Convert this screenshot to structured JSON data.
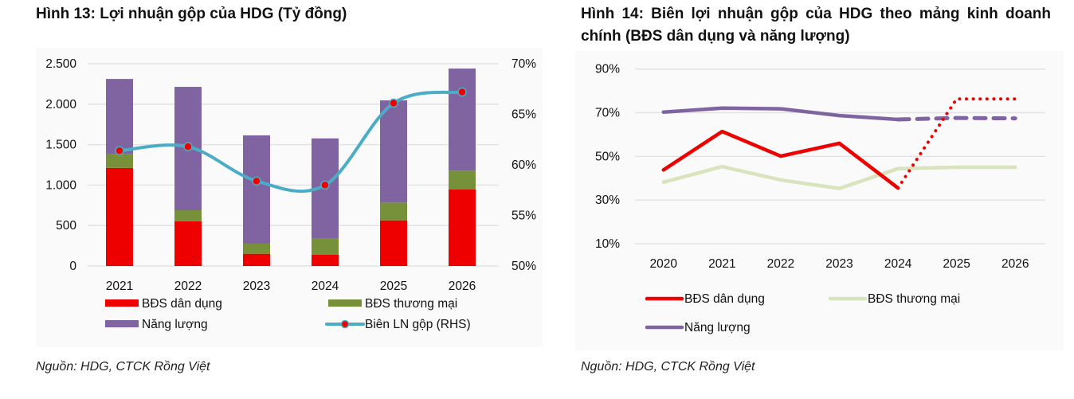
{
  "figure1": {
    "title": "Hình 13: Lợi nhuận gộp của HDG (Tỷ đồng)",
    "source": "Nguồn: HDG, CTCK Rồng Việt"
  },
  "figure2": {
    "title": "Hình 14: Biên lợi nhuận gộp của HDG theo mảng kinh doanh chính (BĐS dân dụng và năng lượng)",
    "source": "Nguồn: HDG, CTCK Rồng Việt"
  },
  "colors": {
    "red": "#ee0000",
    "green": "#77903a",
    "purple": "#8064a2",
    "cyan": "#4bacc6",
    "lightgreen": "#d7e4bd",
    "grid": "#e3e3e3"
  },
  "chart_data": [
    {
      "type": "bar",
      "stacked": true,
      "title": "Hình 13: Lợi nhuận gộp của HDG (Tỷ đồng)",
      "categories": [
        "2021",
        "2022",
        "2023",
        "2024",
        "2025",
        "2026"
      ],
      "series": [
        {
          "name": "BĐS dân dụng",
          "values": [
            1213,
            554,
            151,
            141,
            564,
            945
          ],
          "color": "#ee0000"
        },
        {
          "name": "BĐS thương mại",
          "values": [
            174,
            135,
            125,
            203,
            220,
            233
          ],
          "color": "#77903a"
        },
        {
          "name": "Năng lượng",
          "values": [
            925,
            1525,
            1338,
            1233,
            1263,
            1262
          ],
          "color": "#8064a2"
        }
      ],
      "secondary_series": {
        "name": "Biên LN gộp (RHS)",
        "type": "line",
        "smooth": true,
        "axis": "right",
        "values": [
          61.4,
          61.8,
          58.4,
          58.0,
          66.1,
          67.2
        ],
        "color": "#4bacc6",
        "marker_color": "#ee0000"
      },
      "ylim": [
        0,
        2500
      ],
      "yticks": [
        "0",
        "500",
        "1.000",
        "1.500",
        "2.000",
        "2.500"
      ],
      "ytick_values": [
        0,
        500,
        1000,
        1500,
        2000,
        2500
      ],
      "y2lim": [
        50,
        70
      ],
      "y2ticks": [
        "50%",
        "55%",
        "60%",
        "65%",
        "70%"
      ],
      "y2tick_values": [
        50,
        55,
        60,
        65,
        70
      ],
      "xlabel": "",
      "ylabel": "",
      "grid": true,
      "legend_position": "bottom",
      "legend": [
        "BĐS dân dụng",
        "BĐS thương mại",
        "Năng lượng",
        "Biên LN gộp (RHS)"
      ]
    },
    {
      "type": "line",
      "title": "Hình 14: Biên lợi nhuận gộp của HDG theo mảng kinh doanh chính (BĐS dân dụng và năng lượng)",
      "x": [
        "2020",
        "2021",
        "2022",
        "2023",
        "2024",
        "2025",
        "2026"
      ],
      "series": [
        {
          "name": "BĐS dân dụng",
          "values": [
            43.8,
            61.4,
            50.1,
            56.0,
            35.5,
            76.3,
            76.3
          ],
          "color": "#ee0000",
          "forecast_from_index": 4,
          "forecast_style": "dotted"
        },
        {
          "name": "BĐS thương mại",
          "values": [
            38.2,
            45.3,
            39.2,
            35.3,
            44.4,
            45.0,
            45.0
          ],
          "color": "#d7e4bd"
        },
        {
          "name": "Năng lượng",
          "values": [
            70.3,
            72.1,
            71.8,
            68.7,
            66.9,
            67.6,
            67.4
          ],
          "color": "#8064a2",
          "forecast_from_index": 4,
          "forecast_style": "dashed"
        }
      ],
      "ylim": [
        10,
        90
      ],
      "yticks": [
        "10%",
        "30%",
        "50%",
        "70%",
        "90%"
      ],
      "ytick_values": [
        10,
        30,
        50,
        70,
        90
      ],
      "xlabel": "",
      "ylabel": "",
      "grid": true,
      "legend_position": "bottom",
      "legend": [
        "BĐS dân dụng",
        "BĐS thương mại",
        "Năng lượng"
      ]
    }
  ]
}
